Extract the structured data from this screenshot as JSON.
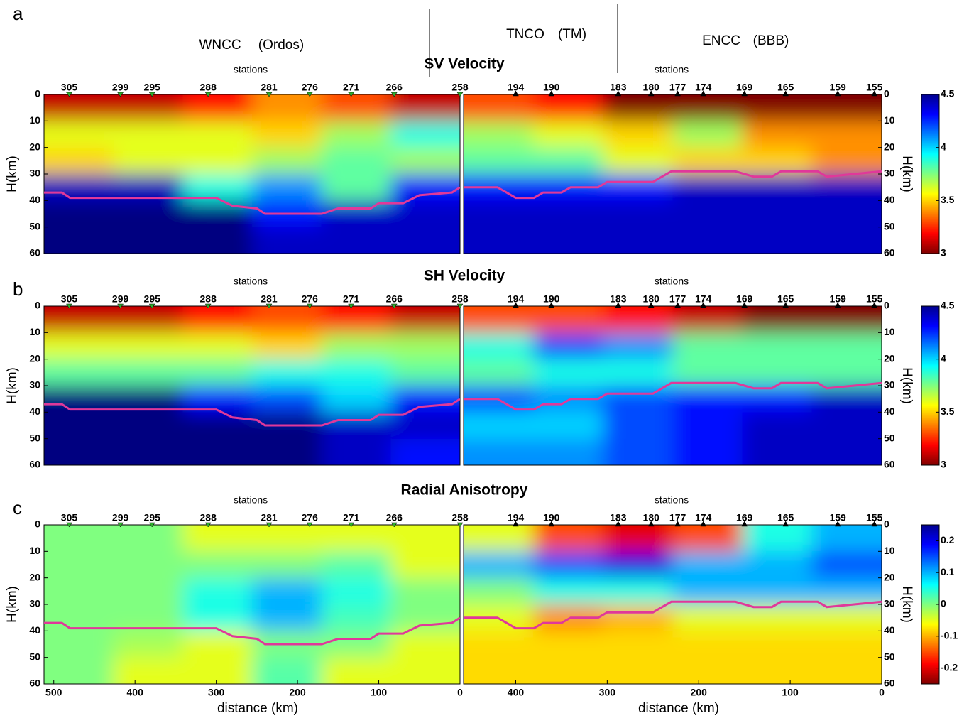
{
  "header": {
    "regions": [
      {
        "name": "WNCC",
        "alias": "(Ordos)"
      },
      {
        "name": "TNCO",
        "alias": "(TM)"
      },
      {
        "name": "ENCC",
        "alias": "(BBB)"
      }
    ]
  },
  "stations": {
    "left": [
      {
        "value": 481,
        "label": "305"
      },
      {
        "value": 418,
        "label": "299"
      },
      {
        "value": 379,
        "label": "295"
      },
      {
        "value": 310,
        "label": "288"
      },
      {
        "value": 235,
        "label": "281"
      },
      {
        "value": 185,
        "label": "276"
      },
      {
        "value": 134,
        "label": "271"
      },
      {
        "value": 81,
        "label": "266"
      },
      {
        "value": 0,
        "label": "258"
      }
    ],
    "right": [
      {
        "value": 400,
        "label": "194"
      },
      {
        "value": 361,
        "label": "190"
      },
      {
        "value": 288,
        "label": "183"
      },
      {
        "value": 252,
        "label": "180"
      },
      {
        "value": 223,
        "label": "177"
      },
      {
        "value": 195,
        "label": "174"
      },
      {
        "value": 150,
        "label": "169"
      },
      {
        "value": 105,
        "label": "165"
      },
      {
        "value": 48,
        "label": "159"
      },
      {
        "value": 8,
        "label": "155"
      }
    ]
  },
  "chart_data": [
    {
      "type": "heatmap",
      "letter": "a",
      "title": "SV Velocity",
      "station_label": "stations",
      "ylabel": "H(km)",
      "ylim": [
        0,
        60
      ],
      "yticks": [
        0,
        10,
        20,
        30,
        40,
        50,
        60
      ],
      "clim": [
        3,
        4.5
      ],
      "cticks": [
        3,
        3.5,
        4,
        4.5
      ],
      "moho_color": "#e0389a",
      "sections": [
        {
          "xlim": [
            512,
            0
          ],
          "values": [
            [
              3.1,
              3.1,
              3.2,
              3.4,
              3.3,
              3.1
            ],
            [
              3.6,
              3.6,
              3.6,
              3.5,
              3.7,
              3.9
            ],
            [
              3.5,
              3.6,
              3.6,
              3.7,
              3.8,
              3.7
            ],
            [
              4.4,
              4.4,
              3.9,
              4.1,
              3.8,
              4.3
            ],
            [
              4.5,
              4.5,
              4.5,
              4.3,
              4.4,
              4.4
            ],
            [
              4.5,
              4.5,
              4.5,
              4.4,
              4.4,
              4.4
            ]
          ],
          "moho": {
            "x": [
              512,
              490,
              480,
              300,
              280,
              250,
              240,
              170,
              150,
              110,
              100,
              70,
              50,
              10,
              0
            ],
            "y": [
              37,
              37,
              39,
              39,
              42,
              43,
              45,
              45,
              43,
              43,
              41,
              41,
              38,
              37,
              35
            ]
          }
        },
        {
          "xlim": [
            457,
            0
          ],
          "values": [
            [
              3.3,
              3.2,
              3.0,
              3.0,
              3.0,
              3.0
            ],
            [
              3.7,
              3.6,
              3.5,
              3.7,
              3.4,
              3.4
            ],
            [
              3.8,
              3.8,
              3.6,
              3.5,
              3.5,
              3.4
            ],
            [
              4.3,
              4.3,
              4.3,
              4.4,
              4.4,
              4.4
            ],
            [
              4.4,
              4.4,
              4.4,
              4.4,
              4.4,
              4.4
            ],
            [
              4.4,
              4.4,
              4.4,
              4.4,
              4.4,
              4.4
            ]
          ],
          "moho": {
            "x": [
              457,
              420,
              410,
              400,
              380,
              370,
              350,
              340,
              310,
              300,
              250,
              240,
              230,
              160,
              140,
              120,
              110,
              70,
              60,
              30,
              0
            ],
            "y": [
              35,
              35,
              37,
              39,
              39,
              37,
              37,
              35,
              35,
              33,
              33,
              31,
              29,
              29,
              31,
              31,
              29,
              29,
              31,
              30,
              29
            ]
          }
        }
      ]
    },
    {
      "type": "heatmap",
      "letter": "b",
      "title": "SH Velocity",
      "station_label": "stations",
      "ylabel": "H(km)",
      "ylim": [
        0,
        60
      ],
      "yticks": [
        0,
        10,
        20,
        30,
        40,
        50,
        60
      ],
      "clim": [
        3,
        4.5
      ],
      "cticks": [
        3,
        3.5,
        4,
        4.5
      ],
      "moho_color": "#e0389a",
      "sections": [
        {
          "xlim": [
            512,
            0
          ],
          "values": [
            [
              3.1,
              3.1,
              3.2,
              3.3,
              3.2,
              3.1
            ],
            [
              3.6,
              3.6,
              3.6,
              3.5,
              3.7,
              3.7
            ],
            [
              3.8,
              3.8,
              3.8,
              3.9,
              3.9,
              3.8
            ],
            [
              4.5,
              4.5,
              4.3,
              4.2,
              4.0,
              4.3
            ],
            [
              4.5,
              4.5,
              4.5,
              4.5,
              4.4,
              4.4
            ],
            [
              4.5,
              4.5,
              4.5,
              4.5,
              4.4,
              4.3
            ]
          ],
          "moho": {
            "x": [
              512,
              490,
              480,
              300,
              280,
              250,
              240,
              170,
              150,
              110,
              100,
              70,
              50,
              10,
              0
            ],
            "y": [
              37,
              37,
              39,
              39,
              42,
              43,
              45,
              45,
              43,
              43,
              41,
              41,
              38,
              37,
              35
            ]
          }
        },
        {
          "xlim": [
            457,
            0
          ],
          "values": [
            [
              3.3,
              3.3,
              3.2,
              3.1,
              3.0,
              3.0
            ],
            [
              3.9,
              4.2,
              4.1,
              3.8,
              3.8,
              3.8
            ],
            [
              3.8,
              3.9,
              3.9,
              3.8,
              3.8,
              3.8
            ],
            [
              4.2,
              4.1,
              4.2,
              4.3,
              4.3,
              4.4
            ],
            [
              4.0,
              4.0,
              4.2,
              4.3,
              4.4,
              4.4
            ],
            [
              4.1,
              4.1,
              4.2,
              4.3,
              4.4,
              4.4
            ]
          ],
          "moho": {
            "x": [
              457,
              420,
              410,
              400,
              380,
              370,
              350,
              340,
              310,
              300,
              250,
              240,
              230,
              160,
              140,
              120,
              110,
              70,
              60,
              30,
              0
            ],
            "y": [
              35,
              35,
              37,
              39,
              39,
              37,
              37,
              35,
              35,
              33,
              33,
              31,
              29,
              29,
              31,
              31,
              29,
              29,
              31,
              30,
              29
            ]
          }
        }
      ]
    },
    {
      "type": "heatmap",
      "letter": "c",
      "title": "Radial Anisotropy",
      "station_label": "stations",
      "ylabel": "H(km)",
      "xlabel": "distance (km)",
      "ylim": [
        0,
        60
      ],
      "yticks": [
        0,
        10,
        20,
        30,
        40,
        50,
        60
      ],
      "clim": [
        -0.25,
        0.25
      ],
      "cticks": [
        -0.2,
        -0.1,
        0,
        0.1,
        0.2
      ],
      "moho_color": "#e0389a",
      "sections": [
        {
          "xlim": [
            512,
            0
          ],
          "xticks": [
            500,
            400,
            300,
            200,
            100,
            0
          ],
          "values": [
            [
              0,
              0,
              -0.05,
              -0.05,
              -0.05,
              -0.05
            ],
            [
              0,
              0,
              0,
              0,
              0.02,
              -0.05
            ],
            [
              0,
              0,
              0.05,
              0.1,
              0.05,
              0
            ],
            [
              0,
              0,
              0.05,
              0.1,
              0.03,
              0
            ],
            [
              0,
              -0.02,
              -0.05,
              0,
              0,
              -0.05
            ],
            [
              0,
              -0.05,
              -0.05,
              0.02,
              -0.05,
              -0.05
            ]
          ],
          "moho": {
            "x": [
              512,
              490,
              480,
              300,
              280,
              250,
              240,
              170,
              150,
              110,
              100,
              70,
              50,
              10,
              0
            ],
            "y": [
              37,
              37,
              39,
              39,
              42,
              43,
              45,
              45,
              43,
              43,
              41,
              41,
              38,
              37,
              35
            ]
          }
        },
        {
          "xlim": [
            457,
            0
          ],
          "xticks": [
            400,
            300,
            200,
            100,
            0
          ],
          "values": [
            [
              -0.05,
              -0.15,
              -0.2,
              -0.15,
              0.05,
              0.1
            ],
            [
              0.1,
              0.15,
              0.2,
              0.1,
              0.1,
              0.15
            ],
            [
              0,
              0.05,
              0.05,
              0.1,
              0.1,
              0.1
            ],
            [
              -0.05,
              -0.12,
              -0.1,
              -0.05,
              -0.05,
              -0.05
            ],
            [
              -0.08,
              -0.08,
              -0.08,
              -0.08,
              -0.08,
              -0.08
            ],
            [
              -0.08,
              -0.08,
              -0.08,
              -0.08,
              -0.08,
              -0.08
            ]
          ],
          "moho": {
            "x": [
              457,
              420,
              410,
              400,
              380,
              370,
              350,
              340,
              310,
              300,
              250,
              240,
              230,
              160,
              140,
              120,
              110,
              70,
              60,
              30,
              0
            ],
            "y": [
              35,
              35,
              37,
              39,
              39,
              37,
              37,
              35,
              35,
              33,
              33,
              31,
              29,
              29,
              31,
              31,
              29,
              29,
              31,
              30,
              29
            ]
          }
        }
      ]
    }
  ]
}
